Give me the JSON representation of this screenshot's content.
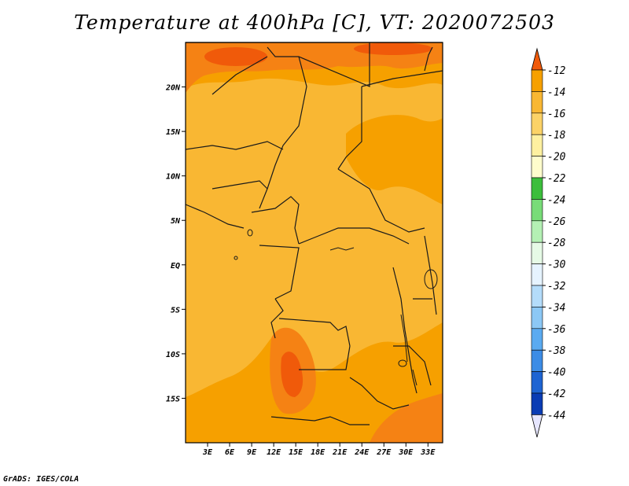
{
  "title": "Temperature at 400hPa [C], VT: 2020072503",
  "credit": "GrADS: IGES/COLA",
  "map": {
    "lon_range": [
      0,
      35
    ],
    "lat_range": [
      -20,
      25
    ],
    "lat_ticks": [
      {
        "value": 20,
        "label": "20N"
      },
      {
        "value": 15,
        "label": "15N"
      },
      {
        "value": 10,
        "label": "10N"
      },
      {
        "value": 5,
        "label": "5N"
      },
      {
        "value": 0,
        "label": "EQ"
      },
      {
        "value": -5,
        "label": "5S"
      },
      {
        "value": -10,
        "label": "10S"
      },
      {
        "value": -15,
        "label": "15S"
      }
    ],
    "lon_ticks": [
      {
        "value": 3,
        "label": "3E"
      },
      {
        "value": 6,
        "label": "6E"
      },
      {
        "value": 9,
        "label": "9E"
      },
      {
        "value": 12,
        "label": "12E"
      },
      {
        "value": 15,
        "label": "15E"
      },
      {
        "value": 18,
        "label": "18E"
      },
      {
        "value": 21,
        "label": "21E"
      },
      {
        "value": 24,
        "label": "24E"
      },
      {
        "value": 27,
        "label": "27E"
      },
      {
        "value": 30,
        "label": "30E"
      },
      {
        "value": 33,
        "label": "33E"
      }
    ]
  },
  "colorbar": {
    "levels": [
      "-12",
      "-14",
      "-16",
      "-18",
      "-20",
      "-22",
      "-24",
      "-26",
      "-28",
      "-30",
      "-32",
      "-34",
      "-36",
      "-38",
      "-40",
      "-42",
      "-44"
    ],
    "colors": [
      "#f05a0a",
      "#f6a000",
      "#f9b733",
      "#fbd267",
      "#fef0a0",
      "#fefccc",
      "#3cbe3c",
      "#78dc78",
      "#b4f0b4",
      "#e6fae6",
      "#e6f3ff",
      "#b4dcfa",
      "#8cc8f5",
      "#5aaaf0",
      "#3c8ce6",
      "#1e64d2",
      "#0a3cb4",
      "#00208c",
      "#e6e6ff"
    ]
  },
  "contours": [
    {
      "name": "Warm north belt (-12 to -14)",
      "color": "#f58214"
    },
    {
      "name": "Mid band (-14 to -16)",
      "color": "#f6a000"
    },
    {
      "name": "Central (-16 to -18)",
      "color": "#f9b733"
    },
    {
      "name": "Angola warm core (-12 to -14)",
      "color": "#f05a0a"
    }
  ]
}
